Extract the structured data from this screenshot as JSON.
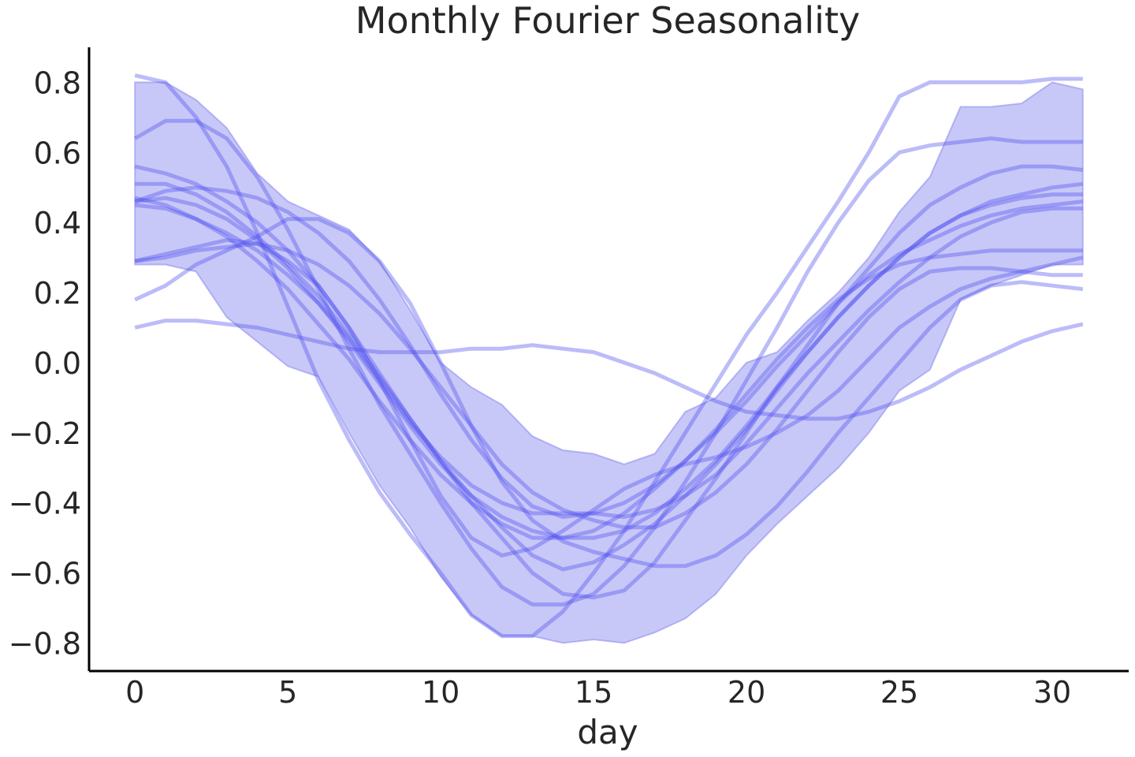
{
  "chart_data": {
    "type": "line",
    "title": "Monthly Fourier Seasonality",
    "xlabel": "day",
    "ylabel": "",
    "xlim": [
      -1.5,
      32.5
    ],
    "ylim": [
      -0.88,
      0.9
    ],
    "xticks": [
      0,
      5,
      10,
      15,
      20,
      25,
      30
    ],
    "xtick_labels": [
      "0",
      "5",
      "10",
      "15",
      "20",
      "25",
      "30"
    ],
    "yticks": [
      0.8,
      0.6,
      0.4,
      0.2,
      0.0,
      -0.2,
      -0.4,
      -0.6,
      -0.8
    ],
    "ytick_labels": [
      "0.8",
      "0.6",
      "0.4",
      "0.2",
      "0.0",
      "−0.2",
      "−0.4",
      "−0.6",
      "−0.8"
    ],
    "grid": false,
    "colors": {
      "line": "#5050f0",
      "band": "#8080ee",
      "text": "#262626"
    },
    "x": [
      0,
      1,
      2,
      3,
      4,
      5,
      6,
      7,
      8,
      9,
      10,
      11,
      12,
      13,
      14,
      15,
      16,
      17,
      18,
      19,
      20,
      21,
      22,
      23,
      24,
      25,
      26,
      27,
      28,
      29,
      30,
      31
    ],
    "band": {
      "upper": [
        0.8,
        0.8,
        0.75,
        0.67,
        0.54,
        0.46,
        0.42,
        0.38,
        0.29,
        0.15,
        0.0,
        -0.07,
        -0.12,
        -0.21,
        -0.25,
        -0.26,
        -0.29,
        -0.26,
        -0.14,
        -0.1,
        0.0,
        0.03,
        0.12,
        0.2,
        0.3,
        0.43,
        0.53,
        0.73,
        0.73,
        0.74,
        0.8,
        0.78
      ],
      "lower": [
        0.28,
        0.28,
        0.26,
        0.13,
        0.06,
        -0.01,
        -0.04,
        -0.2,
        -0.35,
        -0.47,
        -0.61,
        -0.72,
        -0.78,
        -0.78,
        -0.8,
        -0.79,
        -0.8,
        -0.77,
        -0.73,
        -0.66,
        -0.55,
        -0.46,
        -0.38,
        -0.3,
        -0.2,
        -0.08,
        -0.02,
        0.18,
        0.22,
        0.25,
        0.28,
        0.28
      ]
    },
    "series": [
      {
        "values": [
          0.82,
          0.8,
          0.7,
          0.56,
          0.37,
          0.16,
          -0.05,
          -0.22,
          -0.37,
          -0.49,
          -0.6,
          -0.72,
          -0.78,
          -0.78,
          -0.71,
          -0.6,
          -0.48,
          -0.34,
          -0.2,
          -0.06,
          0.08,
          0.2,
          0.33,
          0.46,
          0.6,
          0.76,
          0.8,
          0.8,
          0.8,
          0.8,
          0.81,
          0.81
        ]
      },
      {
        "values": [
          0.64,
          0.69,
          0.69,
          0.64,
          0.53,
          0.38,
          0.21,
          0.04,
          -0.12,
          -0.26,
          -0.4,
          -0.53,
          -0.64,
          -0.69,
          -0.69,
          -0.66,
          -0.58,
          -0.47,
          -0.34,
          -0.2,
          -0.05,
          0.1,
          0.26,
          0.4,
          0.52,
          0.6,
          0.62,
          0.63,
          0.64,
          0.63,
          0.63,
          0.63
        ]
      },
      {
        "values": [
          0.56,
          0.54,
          0.51,
          0.46,
          0.4,
          0.32,
          0.22,
          0.1,
          -0.03,
          -0.16,
          -0.28,
          -0.4,
          -0.5,
          -0.6,
          -0.66,
          -0.67,
          -0.65,
          -0.57,
          -0.45,
          -0.33,
          -0.2,
          -0.07,
          0.05,
          0.17,
          0.27,
          0.37,
          0.45,
          0.5,
          0.54,
          0.56,
          0.56,
          0.55
        ]
      },
      {
        "values": [
          0.51,
          0.51,
          0.48,
          0.43,
          0.36,
          0.28,
          0.19,
          0.08,
          -0.04,
          -0.16,
          -0.28,
          -0.38,
          -0.47,
          -0.55,
          -0.59,
          -0.57,
          -0.52,
          -0.46,
          -0.38,
          -0.29,
          -0.19,
          -0.08,
          0.03,
          0.13,
          0.22,
          0.3,
          0.37,
          0.42,
          0.46,
          0.48,
          0.5,
          0.51
        ]
      },
      {
        "values": [
          0.46,
          0.49,
          0.5,
          0.49,
          0.47,
          0.43,
          0.37,
          0.29,
          0.18,
          0.05,
          -0.09,
          -0.22,
          -0.33,
          -0.41,
          -0.44,
          -0.43,
          -0.4,
          -0.35,
          -0.28,
          -0.2,
          -0.11,
          -0.01,
          0.08,
          0.17,
          0.25,
          0.31,
          0.35,
          0.39,
          0.42,
          0.44,
          0.45,
          0.46
        ]
      },
      {
        "values": [
          0.45,
          0.44,
          0.41,
          0.37,
          0.32,
          0.25,
          0.17,
          0.07,
          -0.05,
          -0.17,
          -0.27,
          -0.35,
          -0.4,
          -0.43,
          -0.43,
          -0.43,
          -0.44,
          -0.42,
          -0.38,
          -0.32,
          -0.23,
          -0.13,
          -0.03,
          0.06,
          0.15,
          0.23,
          0.3,
          0.36,
          0.4,
          0.43,
          0.44,
          0.44
        ]
      },
      {
        "values": [
          0.46,
          0.47,
          0.45,
          0.41,
          0.35,
          0.27,
          0.17,
          0.06,
          -0.06,
          -0.18,
          -0.29,
          -0.38,
          -0.44,
          -0.48,
          -0.5,
          -0.5,
          -0.48,
          -0.43,
          -0.36,
          -0.28,
          -0.18,
          -0.07,
          0.03,
          0.13,
          0.22,
          0.3,
          0.37,
          0.42,
          0.45,
          0.47,
          0.48,
          0.48
        ]
      },
      {
        "values": [
          0.29,
          0.31,
          0.33,
          0.35,
          0.34,
          0.29,
          0.22,
          0.1,
          -0.05,
          -0.22,
          -0.38,
          -0.5,
          -0.55,
          -0.53,
          -0.48,
          -0.42,
          -0.36,
          -0.32,
          -0.29,
          -0.27,
          -0.24,
          -0.2,
          -0.15,
          -0.08,
          0.01,
          0.1,
          0.16,
          0.21,
          0.24,
          0.26,
          0.28,
          0.3
        ]
      },
      {
        "values": [
          0.18,
          0.22,
          0.28,
          0.32,
          0.36,
          0.41,
          0.41,
          0.37,
          0.29,
          0.17,
          0.0,
          -0.18,
          -0.34,
          -0.45,
          -0.51,
          -0.54,
          -0.56,
          -0.58,
          -0.58,
          -0.55,
          -0.49,
          -0.41,
          -0.31,
          -0.2,
          -0.1,
          0.0,
          0.1,
          0.18,
          0.22,
          0.23,
          0.22,
          0.21
        ]
      },
      {
        "values": [
          0.1,
          0.12,
          0.12,
          0.11,
          0.1,
          0.08,
          0.06,
          0.04,
          0.03,
          0.03,
          0.03,
          0.04,
          0.04,
          0.05,
          0.04,
          0.03,
          0.0,
          -0.03,
          -0.07,
          -0.11,
          -0.14,
          -0.15,
          -0.16,
          -0.16,
          -0.14,
          -0.11,
          -0.07,
          -0.02,
          0.02,
          0.06,
          0.09,
          0.11
        ]
      },
      {
        "values": [
          0.29,
          0.3,
          0.32,
          0.33,
          0.34,
          0.32,
          0.28,
          0.22,
          0.14,
          0.04,
          -0.07,
          -0.18,
          -0.29,
          -0.37,
          -0.42,
          -0.45,
          -0.47,
          -0.47,
          -0.43,
          -0.37,
          -0.29,
          -0.19,
          -0.08,
          0.03,
          0.13,
          0.21,
          0.26,
          0.27,
          0.27,
          0.26,
          0.25,
          0.25
        ]
      },
      {
        "values": [
          0.47,
          0.45,
          0.41,
          0.36,
          0.29,
          0.21,
          0.11,
          0.01,
          -0.11,
          -0.22,
          -0.32,
          -0.4,
          -0.46,
          -0.5,
          -0.5,
          -0.48,
          -0.43,
          -0.36,
          -0.28,
          -0.19,
          -0.09,
          0.01,
          0.1,
          0.18,
          0.24,
          0.28,
          0.3,
          0.31,
          0.32,
          0.32,
          0.32,
          0.32
        ]
      }
    ]
  }
}
